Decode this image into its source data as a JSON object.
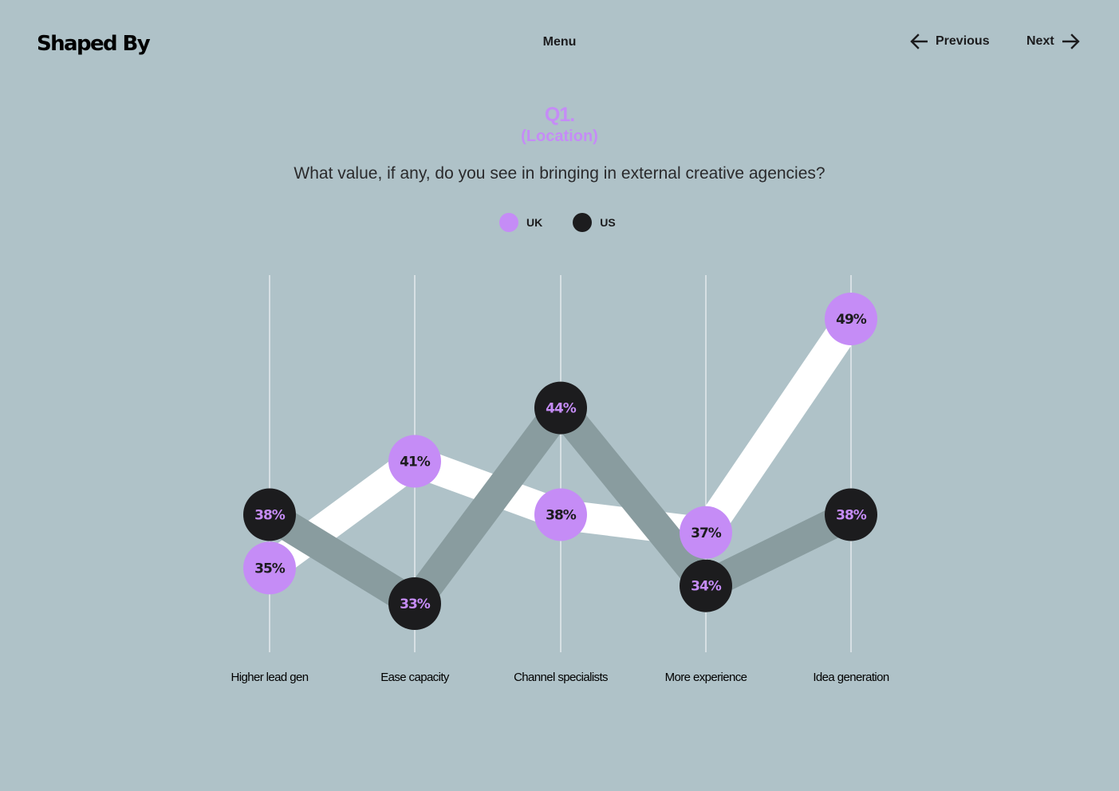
{
  "header": {
    "logo": "Shaped By",
    "menu_label": "Menu",
    "prev_label": "Previous",
    "next_label": "Next"
  },
  "question": {
    "number": "Q1.",
    "subtitle": "(Location)",
    "text": "What value, if any, do you see in bringing in external creative agencies?"
  },
  "colors": {
    "background": "#afc2c8",
    "uk": "#c58cf6",
    "us": "#1c1c1e",
    "uk_band": "#ffffff",
    "us_band": "#899c9f"
  },
  "icons": {
    "prev": "arrow-left-icon",
    "next": "arrow-right-icon"
  },
  "chart_data": {
    "type": "line",
    "categories": [
      "Higher lead gen",
      "Ease capacity",
      "Channel specialists",
      "More experience",
      "Idea generation"
    ],
    "series": [
      {
        "name": "UK",
        "values": [
          35,
          41,
          38,
          37,
          49
        ],
        "labels": [
          "35%",
          "41%",
          "38%",
          "37%",
          "49%"
        ]
      },
      {
        "name": "US",
        "values": [
          38,
          33,
          44,
          34,
          38
        ],
        "labels": [
          "38%",
          "33%",
          "44%",
          "34%",
          "38%"
        ]
      }
    ],
    "unit": "%",
    "legend": "top-center",
    "grid": "vertical"
  }
}
